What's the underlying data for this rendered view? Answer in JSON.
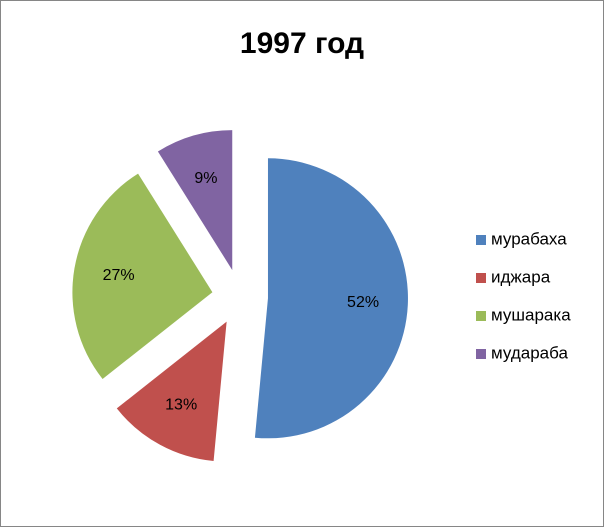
{
  "chart_data": {
    "type": "pie",
    "title": "1997 год",
    "categories": [
      "мурабаха",
      "иджара",
      "мушарака",
      "мудараба"
    ],
    "values": [
      52,
      13,
      27,
      9
    ],
    "value_labels": [
      "52%",
      "13%",
      "27%",
      "9%"
    ],
    "colors": [
      "#4f81bd",
      "#c0504d",
      "#9bbb59",
      "#8064a2"
    ],
    "exploded": true,
    "legend": "right"
  }
}
